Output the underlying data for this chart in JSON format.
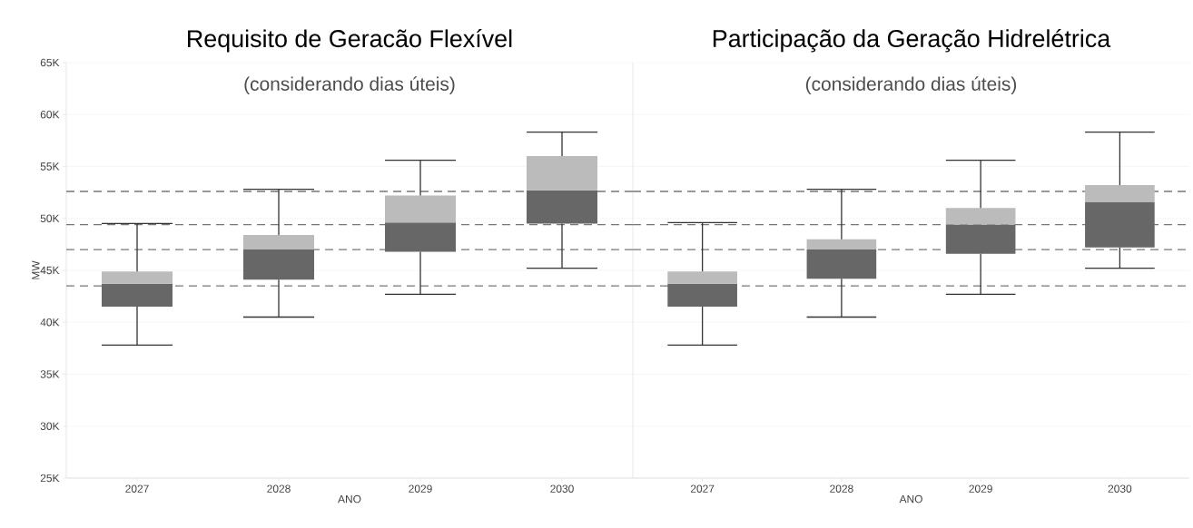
{
  "chart_data": [
    {
      "type": "box",
      "title": "Requisito de Geracão Flexível",
      "subtitle": "(considerando dias úteis)",
      "xlabel": "ANO",
      "ylabel": "MW",
      "categories": [
        "2027",
        "2028",
        "2029",
        "2030"
      ],
      "colors": [
        "#676767",
        "#676767",
        "#676767",
        "#676767"
      ],
      "boxes": [
        {
          "low": 37800,
          "q1": 41500,
          "median": 43700,
          "q3": 44900,
          "high": 49500
        },
        {
          "low": 40500,
          "q1": 44100,
          "median": 47000,
          "q3": 48400,
          "high": 52800
        },
        {
          "low": 42700,
          "q1": 46800,
          "median": 49600,
          "q3": 52200,
          "high": 55600
        },
        {
          "low": 45200,
          "q1": 49500,
          "median": 52700,
          "q3": 56000,
          "high": 58300
        }
      ],
      "ylim": [
        25000,
        65000
      ],
      "yticks": [
        {
          "value": 25000,
          "label": "25K"
        },
        {
          "value": 30000,
          "label": "30K"
        },
        {
          "value": 35000,
          "label": "35K"
        },
        {
          "value": 40000,
          "label": "40K"
        },
        {
          "value": 45000,
          "label": "45K"
        },
        {
          "value": 50000,
          "label": "50K"
        },
        {
          "value": 55000,
          "label": "55K"
        },
        {
          "value": 60000,
          "label": "60K"
        },
        {
          "value": 65000,
          "label": "65K"
        }
      ],
      "grid": "y",
      "ref_lines": [
        {
          "axis": "y",
          "value": 43500,
          "color": "#777777",
          "line_style": "dashed"
        },
        {
          "axis": "y",
          "value": 47000,
          "color": "#777777",
          "line_style": "dashed"
        },
        {
          "axis": "y",
          "value": 49400,
          "color": "#777777",
          "line_style": "dashed"
        },
        {
          "axis": "y",
          "value": 52600,
          "color": "#777777",
          "line_style": "dashed"
        }
      ]
    },
    {
      "type": "box",
      "title": "Participação da Geração Hidrelétrica",
      "subtitle": "(considerando dias úteis)",
      "xlabel": "ANO",
      "categories": [
        "2027",
        "2028",
        "2029",
        "2030"
      ],
      "colors": [
        "#676767",
        "#676767",
        "#676767",
        "#676767"
      ],
      "boxes": [
        {
          "low": 37800,
          "q1": 41500,
          "median": 43700,
          "q3": 44900,
          "high": 49600
        },
        {
          "low": 40500,
          "q1": 44200,
          "median": 47000,
          "q3": 48000,
          "high": 52800
        },
        {
          "low": 42700,
          "q1": 46600,
          "median": 49400,
          "q3": 51000,
          "high": 55600
        },
        {
          "low": 45200,
          "q1": 47200,
          "median": 51600,
          "q3": 53200,
          "high": 58300
        }
      ],
      "ylim": [
        25000,
        65000
      ],
      "yticks": [
        {
          "value": 25000,
          "label": null
        },
        {
          "value": 30000,
          "label": null
        },
        {
          "value": 35000,
          "label": null
        },
        {
          "value": 40000,
          "label": null
        },
        {
          "value": 45000,
          "label": null
        },
        {
          "value": 50000,
          "label": null
        },
        {
          "value": 55000,
          "label": null
        },
        {
          "value": 60000,
          "label": null
        },
        {
          "value": 65000,
          "label": null
        }
      ],
      "grid": "y",
      "tick_labels": "x",
      "ref_lines": [
        {
          "axis": "y",
          "value": 43500,
          "color": "#777777",
          "line_style": "dashed"
        },
        {
          "axis": "y",
          "value": 47000,
          "color": "#777777",
          "line_style": "dashed"
        },
        {
          "axis": "y",
          "value": 49400,
          "color": "#777777",
          "line_style": "dashed"
        },
        {
          "axis": "y",
          "value": 52600,
          "color": "#777777",
          "line_style": "dashed"
        }
      ]
    }
  ]
}
